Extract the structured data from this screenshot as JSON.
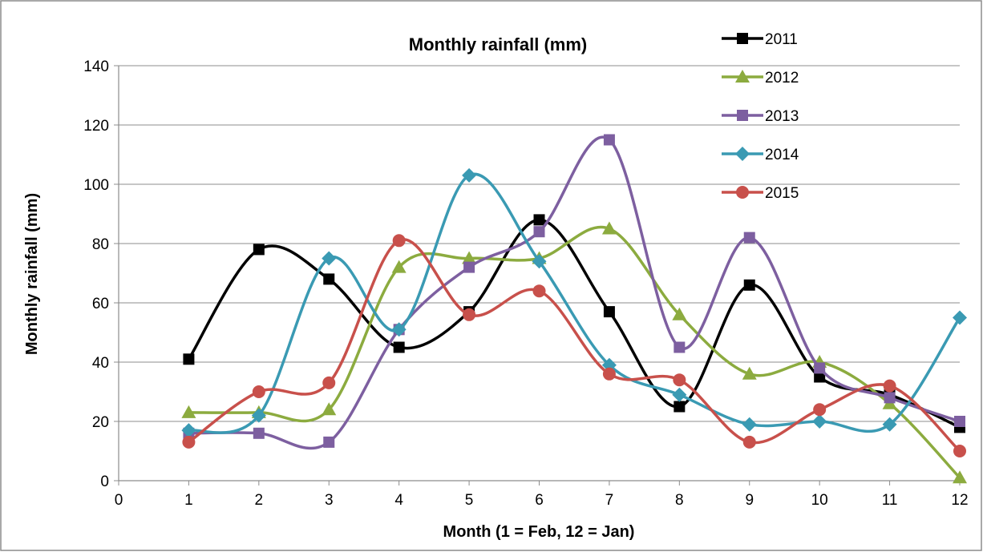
{
  "chart_data": {
    "type": "line",
    "title": "Monthly rainfall (mm)",
    "xlabel": "Month (1 = Feb, 12 = Jan)",
    "ylabel": "Monthly rainfall (mm)",
    "xlim": [
      0,
      12
    ],
    "ylim": [
      0,
      140
    ],
    "xticks": [
      "0",
      "1",
      "2",
      "3",
      "4",
      "5",
      "6",
      "7",
      "8",
      "9",
      "10",
      "11",
      "12"
    ],
    "yticks": [
      "0",
      "20",
      "40",
      "60",
      "80",
      "100",
      "120",
      "140"
    ],
    "grid": "horizontal",
    "legend_position": "top-right",
    "x": [
      1,
      2,
      3,
      4,
      5,
      6,
      7,
      8,
      9,
      10,
      11,
      12
    ],
    "series": [
      {
        "name": "2011",
        "color": "#000000",
        "marker": "square",
        "values": [
          41,
          78,
          68,
          45,
          57,
          88,
          57,
          25,
          66,
          35,
          29,
          18
        ]
      },
      {
        "name": "2012",
        "color": "#8CAB3F",
        "marker": "triangle",
        "values": [
          23,
          23,
          24,
          72,
          75,
          75,
          85,
          56,
          36,
          40,
          26,
          1
        ]
      },
      {
        "name": "2013",
        "color": "#7D5FA0",
        "marker": "square",
        "values": [
          16,
          16,
          13,
          51,
          72,
          84,
          115,
          45,
          82,
          38,
          28,
          20
        ]
      },
      {
        "name": "2014",
        "color": "#3A9AB3",
        "marker": "diamond",
        "values": [
          17,
          22,
          75,
          51,
          103,
          74,
          39,
          29,
          19,
          20,
          19,
          55
        ]
      },
      {
        "name": "2015",
        "color": "#C8504B",
        "marker": "circle",
        "values": [
          13,
          30,
          33,
          81,
          56,
          64,
          36,
          34,
          13,
          24,
          32,
          10
        ]
      }
    ]
  }
}
